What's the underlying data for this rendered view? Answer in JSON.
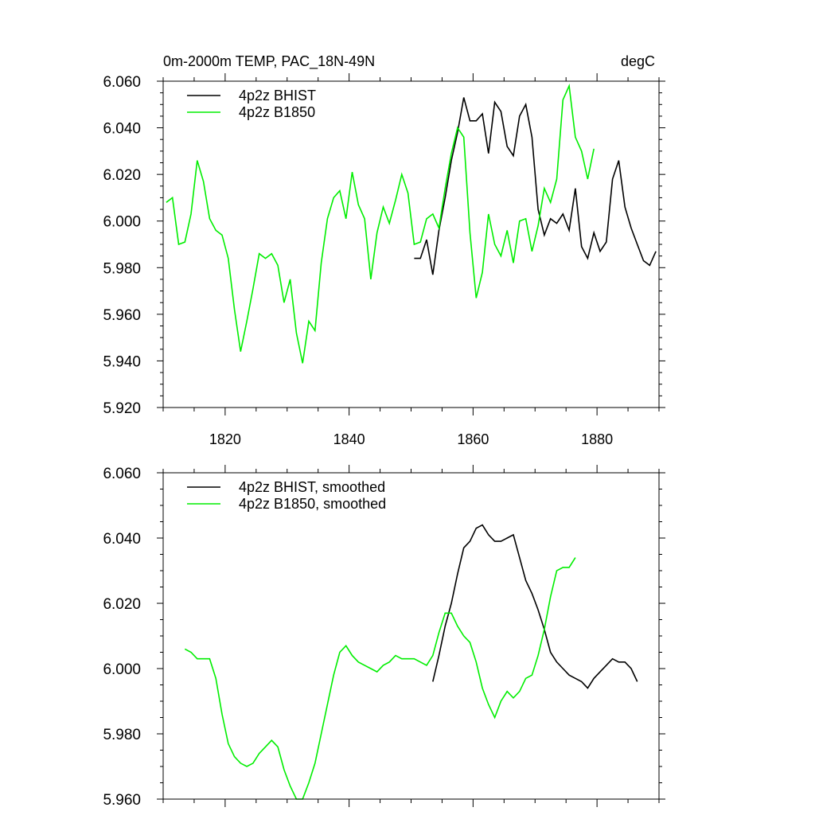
{
  "chart_data": [
    {
      "type": "line",
      "title_left": "0m-2000m TEMP, PAC_18N-49N",
      "title_right": "degC",
      "xlabel": "",
      "ylabel": "",
      "xlim": [
        1810,
        1890
      ],
      "ylim": [
        5.92,
        6.06
      ],
      "xticks": [
        1820,
        1840,
        1860,
        1880
      ],
      "xtick_labels": [
        "1820",
        "1840",
        "1860",
        "1880"
      ],
      "yticks": [
        5.92,
        5.94,
        5.96,
        5.98,
        6.0,
        6.02,
        6.04,
        6.06
      ],
      "ytick_labels": [
        "5.920",
        "5.940",
        "5.960",
        "5.980",
        "6.000",
        "6.020",
        "6.040",
        "6.060"
      ],
      "legend_position": "top-left",
      "series": [
        {
          "name": "4p2z BHIST",
          "color": "#000000",
          "x": [
            1850.5,
            1851.5,
            1852.5,
            1853.5,
            1854.5,
            1855.5,
            1856.5,
            1857.5,
            1858.5,
            1859.5,
            1860.5,
            1861.5,
            1862.5,
            1863.5,
            1864.5,
            1865.5,
            1866.5,
            1867.5,
            1868.5,
            1869.5,
            1870.5,
            1871.5,
            1872.5,
            1873.5,
            1874.5,
            1875.5,
            1876.5,
            1877.5,
            1878.5,
            1879.5,
            1880.5,
            1881.5,
            1882.5,
            1883.5,
            1884.5,
            1885.5,
            1886.5,
            1887.5,
            1888.5,
            1889.5
          ],
          "y": [
            5.984,
            5.984,
            5.992,
            5.977,
            5.996,
            6.01,
            6.026,
            6.038,
            6.053,
            6.043,
            6.043,
            6.046,
            6.029,
            6.051,
            6.047,
            6.032,
            6.028,
            6.045,
            6.05,
            6.036,
            6.005,
            5.994,
            6.001,
            5.999,
            6.003,
            5.996,
            6.014,
            5.989,
            5.984,
            5.995,
            5.987,
            5.991,
            6.018,
            6.026,
            6.006,
            5.997,
            5.99,
            5.983,
            5.981,
            5.987
          ]
        },
        {
          "name": "4p2z B1850",
          "color": "#00ee00",
          "x": [
            1810.5,
            1811.5,
            1812.5,
            1813.5,
            1814.5,
            1815.5,
            1816.5,
            1817.5,
            1818.5,
            1819.5,
            1820.5,
            1821.5,
            1822.5,
            1823.5,
            1824.5,
            1825.5,
            1826.5,
            1827.5,
            1828.5,
            1829.5,
            1830.5,
            1831.5,
            1832.5,
            1833.5,
            1834.5,
            1835.5,
            1836.5,
            1837.5,
            1838.5,
            1839.5,
            1840.5,
            1841.5,
            1842.5,
            1843.5,
            1844.5,
            1845.5,
            1846.5,
            1847.5,
            1848.5,
            1849.5,
            1850.5,
            1851.5,
            1852.5,
            1853.5,
            1854.5,
            1855.5,
            1856.5,
            1857.5,
            1858.5,
            1859.5,
            1860.5,
            1861.5,
            1862.5,
            1863.5,
            1864.5,
            1865.5,
            1866.5,
            1867.5,
            1868.5,
            1869.5,
            1870.5,
            1871.5,
            1872.5,
            1873.5,
            1874.5,
            1875.5,
            1876.5,
            1877.5,
            1878.5,
            1879.5
          ],
          "y": [
            6.008,
            6.01,
            5.99,
            5.991,
            6.003,
            6.026,
            6.017,
            6.001,
            5.996,
            5.994,
            5.984,
            5.962,
            5.944,
            5.957,
            5.971,
            5.986,
            5.984,
            5.986,
            5.981,
            5.965,
            5.975,
            5.952,
            5.939,
            5.957,
            5.953,
            5.982,
            6.001,
            6.01,
            6.013,
            6.001,
            6.021,
            6.007,
            6.001,
            5.975,
            5.995,
            6.006,
            5.999,
            6.009,
            6.02,
            6.012,
            5.99,
            5.991,
            6.001,
            6.003,
            5.997,
            6.014,
            6.029,
            6.04,
            6.036,
            5.995,
            5.967,
            5.978,
            6.003,
            5.99,
            5.985,
            5.996,
            5.982,
            6.0,
            6.001,
            5.987,
            5.998,
            6.014,
            6.008,
            6.018,
            6.052,
            6.058,
            6.036,
            6.03,
            6.018,
            6.031
          ]
        }
      ]
    },
    {
      "type": "line",
      "xlabel": "",
      "ylabel": "",
      "xlim": [
        1810,
        1890
      ],
      "ylim": [
        5.96,
        6.06
      ],
      "xticks": [
        1820,
        1840,
        1860,
        1880
      ],
      "yticks": [
        5.96,
        5.98,
        6.0,
        6.02,
        6.04,
        6.06
      ],
      "ytick_labels": [
        "5.960",
        "5.980",
        "6.000",
        "6.020",
        "6.040",
        "6.060"
      ],
      "legend_position": "top-left",
      "series": [
        {
          "name": "4p2z BHIST, smoothed",
          "color": "#000000",
          "x": [
            1853.5,
            1854.5,
            1855.5,
            1856.5,
            1857.5,
            1858.5,
            1859.5,
            1860.5,
            1861.5,
            1862.5,
            1863.5,
            1864.5,
            1865.5,
            1866.5,
            1867.5,
            1868.5,
            1869.5,
            1870.5,
            1871.5,
            1872.5,
            1873.5,
            1874.5,
            1875.5,
            1876.5,
            1877.5,
            1878.5,
            1879.5,
            1880.5,
            1881.5,
            1882.5,
            1883.5,
            1884.5,
            1885.5,
            1886.5
          ],
          "y": [
            5.996,
            6.004,
            6.013,
            6.02,
            6.029,
            6.037,
            6.039,
            6.043,
            6.044,
            6.041,
            6.039,
            6.039,
            6.04,
            6.041,
            6.034,
            6.027,
            6.023,
            6.018,
            6.012,
            6.005,
            6.002,
            6.0,
            5.998,
            5.997,
            5.996,
            5.994,
            5.997,
            5.999,
            6.001,
            6.003,
            6.002,
            6.002,
            6.0,
            5.996
          ]
        },
        {
          "name": "4p2z B1850, smoothed",
          "color": "#00ee00",
          "x": [
            1813.5,
            1814.5,
            1815.5,
            1816.5,
            1817.5,
            1818.5,
            1819.5,
            1820.5,
            1821.5,
            1822.5,
            1823.5,
            1824.5,
            1825.5,
            1826.5,
            1827.5,
            1828.5,
            1829.5,
            1830.5,
            1831.5,
            1832.5,
            1833.5,
            1834.5,
            1835.5,
            1836.5,
            1837.5,
            1838.5,
            1839.5,
            1840.5,
            1841.5,
            1842.5,
            1843.5,
            1844.5,
            1845.5,
            1846.5,
            1847.5,
            1848.5,
            1849.5,
            1850.5,
            1851.5,
            1852.5,
            1853.5,
            1854.5,
            1855.5,
            1856.5,
            1857.5,
            1858.5,
            1859.5,
            1860.5,
            1861.5,
            1862.5,
            1863.5,
            1864.5,
            1865.5,
            1866.5,
            1867.5,
            1868.5,
            1869.5,
            1870.5,
            1871.5,
            1872.5,
            1873.5,
            1874.5,
            1875.5,
            1876.5
          ],
          "y": [
            6.006,
            6.005,
            6.003,
            6.003,
            6.003,
            5.997,
            5.986,
            5.977,
            5.973,
            5.971,
            5.97,
            5.971,
            5.974,
            5.976,
            5.978,
            5.976,
            5.969,
            5.964,
            5.959,
            5.96,
            5.965,
            5.971,
            5.98,
            5.989,
            5.998,
            6.005,
            6.007,
            6.004,
            6.002,
            6.001,
            6.0,
            5.999,
            6.001,
            6.002,
            6.004,
            6.003,
            6.003,
            6.003,
            6.002,
            6.001,
            6.004,
            6.011,
            6.017,
            6.017,
            6.013,
            6.01,
            6.008,
            6.002,
            5.994,
            5.989,
            5.985,
            5.99,
            5.993,
            5.991,
            5.993,
            5.997,
            5.998,
            6.004,
            6.012,
            6.022,
            6.03,
            6.031,
            6.031,
            6.034
          ]
        }
      ]
    }
  ]
}
